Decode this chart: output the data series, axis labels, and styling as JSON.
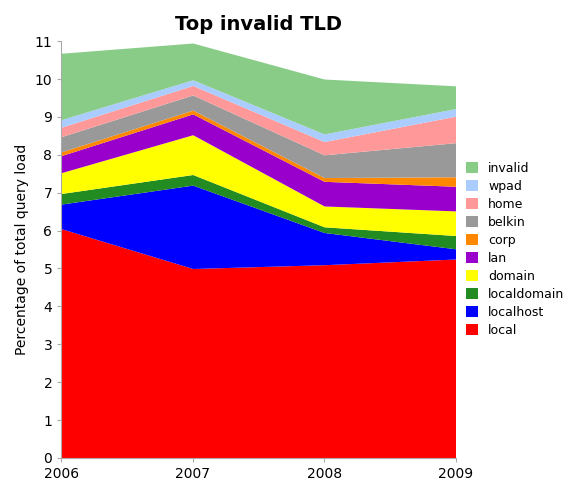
{
  "title": "Top invalid TLD",
  "xlabel": "",
  "ylabel": "Percentage of total query load",
  "years": [
    2006,
    2007,
    2008,
    2009
  ],
  "ylim": [
    0,
    11
  ],
  "yticks": [
    0,
    1,
    2,
    3,
    4,
    5,
    6,
    7,
    8,
    9,
    10,
    11
  ],
  "series": [
    {
      "label": "local",
      "color": "#ff0000",
      "values": [
        6.05,
        5.0,
        5.1,
        5.25
      ]
    },
    {
      "label": "localhost",
      "color": "#0000ff",
      "values": [
        0.65,
        2.2,
        0.85,
        0.27
      ]
    },
    {
      "label": "localdomain",
      "color": "#228B22",
      "values": [
        0.28,
        0.28,
        0.15,
        0.35
      ]
    },
    {
      "label": "domain",
      "color": "#ffff00",
      "values": [
        0.55,
        1.05,
        0.55,
        0.65
      ]
    },
    {
      "label": "lan",
      "color": "#9900cc",
      "values": [
        0.45,
        0.55,
        0.65,
        0.65
      ]
    },
    {
      "label": "corp",
      "color": "#ff8800",
      "values": [
        0.1,
        0.1,
        0.1,
        0.25
      ]
    },
    {
      "label": "belkin",
      "color": "#999999",
      "values": [
        0.4,
        0.4,
        0.6,
        0.9
      ]
    },
    {
      "label": "home",
      "color": "#ff9999",
      "values": [
        0.25,
        0.25,
        0.35,
        0.7
      ]
    },
    {
      "label": "wpad",
      "color": "#aaccff",
      "values": [
        0.2,
        0.15,
        0.2,
        0.2
      ]
    },
    {
      "label": "invalid",
      "color": "#88cc88",
      "values": [
        1.75,
        0.97,
        1.45,
        0.6
      ]
    }
  ],
  "background_color": "#ffffff",
  "title_fontsize": 14,
  "axis_fontsize": 10,
  "tick_fontsize": 10,
  "xlim_left": 2006,
  "xlim_right": 2009
}
